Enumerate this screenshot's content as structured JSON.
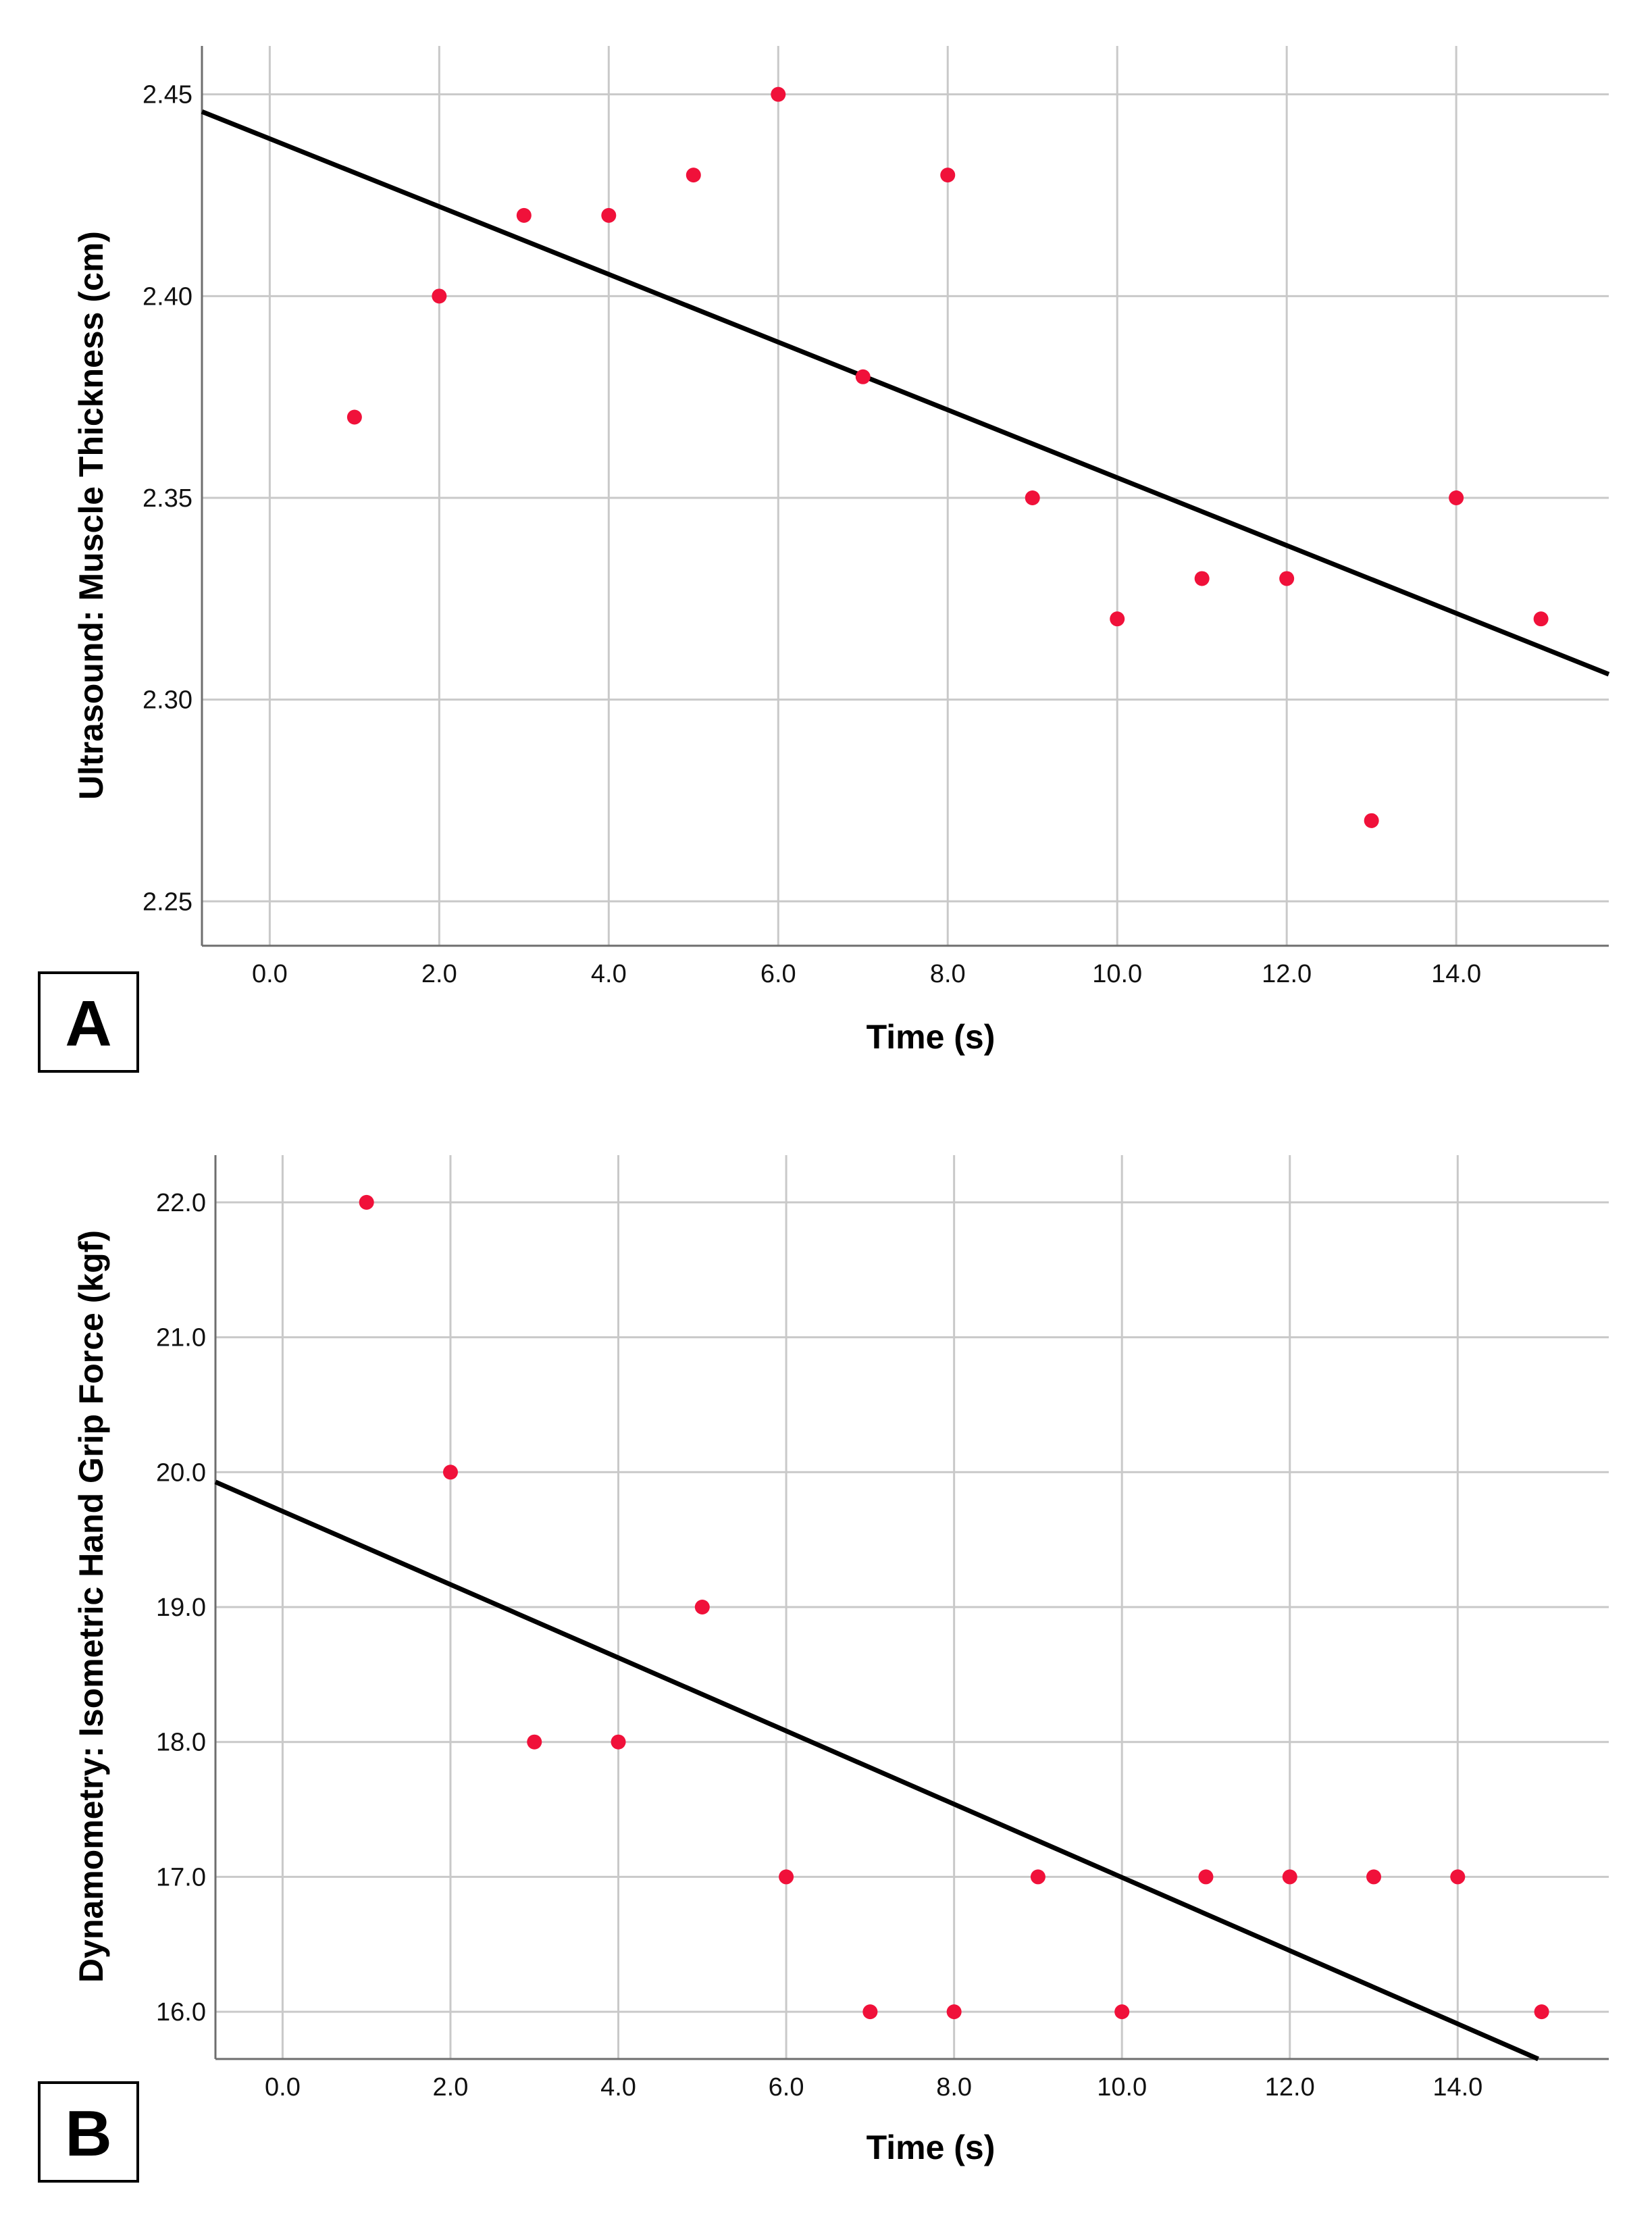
{
  "colors": {
    "point": "#f0113a",
    "fit_line": "#000000",
    "grid": "#c9c9c9",
    "axis": "#6e6e6e"
  },
  "chart_data": [
    {
      "panel": "A",
      "type": "scatter",
      "xlabel": "Time (s)",
      "ylabel": "Ultrasound: Muscle Thickness (cm)",
      "xlim": [
        -0.8,
        15.8
      ],
      "ylim": [
        2.239,
        2.462
      ],
      "xticks": [
        "0.0",
        "2.0",
        "4.0",
        "6.0",
        "8.0",
        "10.0",
        "12.0",
        "14.0"
      ],
      "xtick_values": [
        0,
        2,
        4,
        6,
        8,
        10,
        12,
        14
      ],
      "yticks": [
        "2.25",
        "2.30",
        "2.35",
        "2.40",
        "2.45"
      ],
      "ytick_values": [
        2.25,
        2.3,
        2.35,
        2.4,
        2.45
      ],
      "x": [
        1,
        2,
        3,
        4,
        5,
        6,
        7,
        8,
        9,
        10,
        11,
        12,
        13,
        14,
        15
      ],
      "y": [
        2.37,
        2.4,
        2.42,
        2.42,
        2.43,
        2.45,
        2.38,
        2.43,
        2.35,
        2.32,
        2.33,
        2.33,
        2.27,
        2.35,
        2.32
      ],
      "fit": {
        "slope": -0.0084,
        "intercept": 2.439
      }
    },
    {
      "panel": "B",
      "type": "scatter",
      "xlabel": "Time (s)",
      "ylabel": "Dynamometry: Isometric Hand Grip Force (kgf)",
      "xlim": [
        -0.8,
        15.8
      ],
      "ylim": [
        15.65,
        22.35
      ],
      "xticks": [
        "0.0",
        "2.0",
        "4.0",
        "6.0",
        "8.0",
        "10.0",
        "12.0",
        "14.0"
      ],
      "xtick_values": [
        0,
        2,
        4,
        6,
        8,
        10,
        12,
        14
      ],
      "yticks": [
        "16.0",
        "17.0",
        "18.0",
        "19.0",
        "20.0",
        "21.0",
        "22.0"
      ],
      "ytick_values": [
        16,
        17,
        18,
        19,
        20,
        21,
        22
      ],
      "x": [
        1,
        2,
        3,
        4,
        5,
        6,
        7,
        8,
        9,
        10,
        11,
        12,
        13,
        14,
        15
      ],
      "y": [
        22,
        20,
        18,
        18,
        19,
        17,
        16,
        16,
        17,
        16,
        17,
        17,
        17,
        17,
        16
      ],
      "fit": {
        "slope": -0.2714,
        "intercept": 19.71
      }
    }
  ]
}
